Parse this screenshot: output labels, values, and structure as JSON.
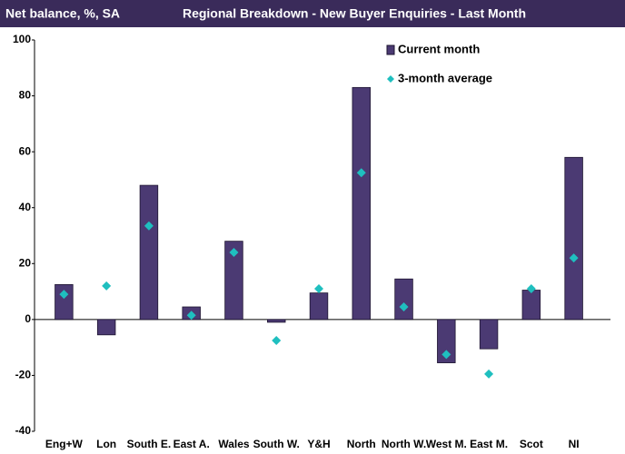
{
  "chart_data": {
    "type": "bar",
    "ylabel": "Net balance, %, SA",
    "title": "Regional Breakdown - New Buyer Enquiries - Last Month",
    "categories": [
      "Eng+W",
      "Lon",
      "South E.",
      "East A.",
      "Wales",
      "South W.",
      "Y&H",
      "North",
      "North W.",
      "West M.",
      "East M.",
      "Scot",
      "NI"
    ],
    "series": [
      {
        "name": "Current month",
        "color": "#4b3a73",
        "marker": "bar",
        "values": [
          12.5,
          -5.5,
          48,
          4.5,
          28,
          -1,
          9.5,
          83,
          14.5,
          -15.5,
          -10.5,
          10.5,
          58
        ]
      },
      {
        "name": "3-month average",
        "color": "#1fbfbf",
        "marker": "diamond",
        "values": [
          9,
          12,
          33.5,
          1.5,
          24,
          -7.5,
          11,
          52.5,
          4.5,
          -12.5,
          -19.5,
          11,
          22
        ]
      }
    ],
    "ylim": [
      -40,
      100
    ],
    "yticks": [
      -40,
      -20,
      0,
      20,
      40,
      60,
      80,
      100
    ],
    "legend": "top-right"
  }
}
